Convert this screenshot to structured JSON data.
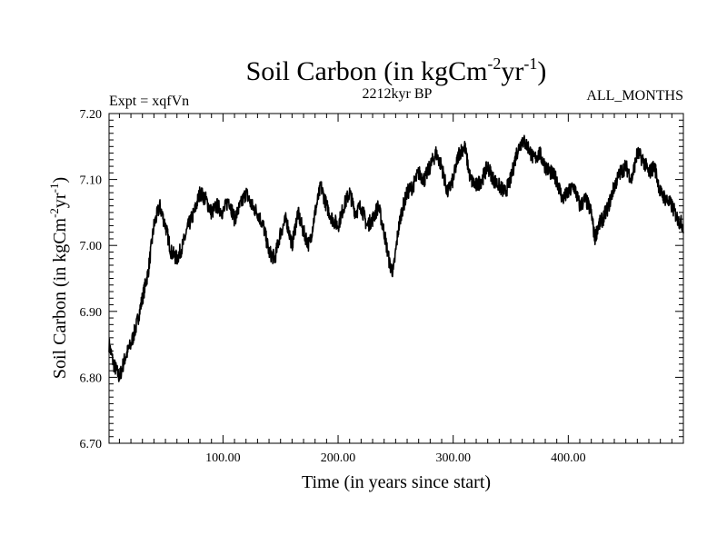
{
  "chart_data": {
    "type": "line",
    "title": "Soil Carbon (in kgCm",
    "title_sup1": "-2",
    "title_mid": "yr",
    "title_sup2": "-1",
    "title_end": ")",
    "subtitle_left": "Expt = xqfVn",
    "subtitle_center": "2212kyr BP",
    "subtitle_right": "ALL_MONTHS",
    "xlabel": "Time (in years since start)",
    "ylabel": "Soil Carbon (in kgCm",
    "ylabel_sup1": "-2",
    "ylabel_mid": "yr",
    "ylabel_sup2": "-1",
    "ylabel_end": ")",
    "xlim": [
      1,
      500
    ],
    "ylim": [
      6.7,
      7.2
    ],
    "x_ticks": [
      100,
      200,
      300,
      400
    ],
    "x_tick_labels": [
      "100.00",
      "200.00",
      "300.00",
      "400.00"
    ],
    "y_ticks": [
      6.7,
      6.8,
      6.9,
      7.0,
      7.1,
      7.2
    ],
    "y_tick_labels": [
      "6.70",
      "6.80",
      "6.90",
      "7.00",
      "7.10",
      "7.20"
    ],
    "line_color": "#000000",
    "series": [
      {
        "name": "Soil Carbon",
        "x": [
          1,
          5,
          10,
          15,
          20,
          25,
          30,
          35,
          40,
          45,
          50,
          55,
          60,
          65,
          70,
          75,
          80,
          85,
          90,
          95,
          100,
          105,
          110,
          115,
          120,
          125,
          130,
          135,
          140,
          145,
          150,
          155,
          160,
          165,
          170,
          175,
          180,
          185,
          190,
          195,
          200,
          205,
          210,
          215,
          220,
          225,
          230,
          235,
          240,
          245,
          248,
          252,
          255,
          260,
          265,
          270,
          275,
          280,
          285,
          290,
          295,
          300,
          305,
          310,
          315,
          320,
          325,
          330,
          335,
          340,
          345,
          350,
          355,
          360,
          365,
          370,
          375,
          380,
          385,
          390,
          395,
          400,
          405,
          410,
          415,
          420,
          423,
          426,
          430,
          435,
          440,
          445,
          450,
          455,
          460,
          465,
          470,
          475,
          480,
          485,
          490,
          495,
          500
        ],
        "values": [
          6.85,
          6.82,
          6.8,
          6.83,
          6.85,
          6.88,
          6.92,
          6.96,
          7.03,
          7.06,
          7.03,
          6.99,
          6.98,
          7.0,
          7.03,
          7.05,
          7.08,
          7.07,
          7.05,
          7.06,
          7.05,
          7.07,
          7.04,
          7.06,
          7.08,
          7.06,
          7.05,
          7.03,
          6.99,
          6.98,
          7.02,
          7.04,
          7.0,
          7.05,
          7.02,
          7.0,
          7.05,
          7.09,
          7.06,
          7.04,
          7.03,
          7.06,
          7.08,
          7.05,
          7.06,
          7.03,
          7.04,
          7.06,
          7.02,
          6.97,
          6.96,
          7.02,
          7.05,
          7.08,
          7.09,
          7.11,
          7.1,
          7.12,
          7.14,
          7.12,
          7.08,
          7.1,
          7.14,
          7.15,
          7.1,
          7.09,
          7.1,
          7.12,
          7.1,
          7.09,
          7.08,
          7.1,
          7.14,
          7.16,
          7.15,
          7.13,
          7.14,
          7.12,
          7.11,
          7.1,
          7.07,
          7.08,
          7.09,
          7.06,
          7.07,
          7.05,
          7.01,
          7.03,
          7.04,
          7.06,
          7.09,
          7.11,
          7.12,
          7.1,
          7.14,
          7.13,
          7.11,
          7.12,
          7.08,
          7.07,
          7.06,
          7.04,
          7.03
        ]
      }
    ]
  }
}
